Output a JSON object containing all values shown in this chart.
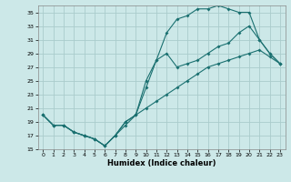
{
  "xlabel": "Humidex (Indice chaleur)",
  "bg_color": "#cce8e8",
  "line_color": "#1a7070",
  "grid_color": "#aacccc",
  "xlim": [
    -0.5,
    23.5
  ],
  "ylim": [
    15,
    36
  ],
  "yticks": [
    15,
    17,
    19,
    21,
    23,
    25,
    27,
    29,
    31,
    33,
    35
  ],
  "xticks": [
    0,
    1,
    2,
    3,
    4,
    5,
    6,
    7,
    8,
    9,
    10,
    11,
    12,
    13,
    14,
    15,
    16,
    17,
    18,
    19,
    20,
    21,
    22,
    23
  ],
  "line1_x": [
    0,
    1,
    2,
    3,
    4,
    5,
    6,
    7,
    8,
    9,
    10,
    11,
    12,
    13,
    14,
    15,
    16,
    17,
    18,
    19,
    20,
    21,
    22,
    23
  ],
  "line1_y": [
    20,
    18.5,
    18.5,
    17.5,
    17,
    16.5,
    15.5,
    17,
    18.5,
    20,
    24,
    28,
    32,
    34,
    34.5,
    35.5,
    35.5,
    36,
    35.5,
    35,
    35,
    31,
    29,
    27.5
  ],
  "line2_x": [
    0,
    1,
    2,
    3,
    4,
    5,
    6,
    7,
    8,
    9,
    10,
    11,
    12,
    13,
    14,
    15,
    16,
    17,
    18,
    19,
    20,
    21,
    22,
    23
  ],
  "line2_y": [
    20,
    18.5,
    18.5,
    17.5,
    17,
    16.5,
    15.5,
    17,
    19,
    20,
    25,
    28,
    29,
    27,
    27.5,
    28,
    29,
    30,
    30.5,
    32,
    33,
    31,
    29,
    27.5
  ],
  "line3_x": [
    0,
    1,
    2,
    3,
    4,
    5,
    6,
    7,
    8,
    9,
    10,
    11,
    12,
    13,
    14,
    15,
    16,
    17,
    18,
    19,
    20,
    21,
    22,
    23
  ],
  "line3_y": [
    20,
    18.5,
    18.5,
    17.5,
    17,
    16.5,
    15.5,
    17,
    19,
    20,
    21,
    22,
    23,
    24,
    25,
    26,
    27,
    27.5,
    28,
    28.5,
    29,
    29.5,
    28.5,
    27.5
  ]
}
